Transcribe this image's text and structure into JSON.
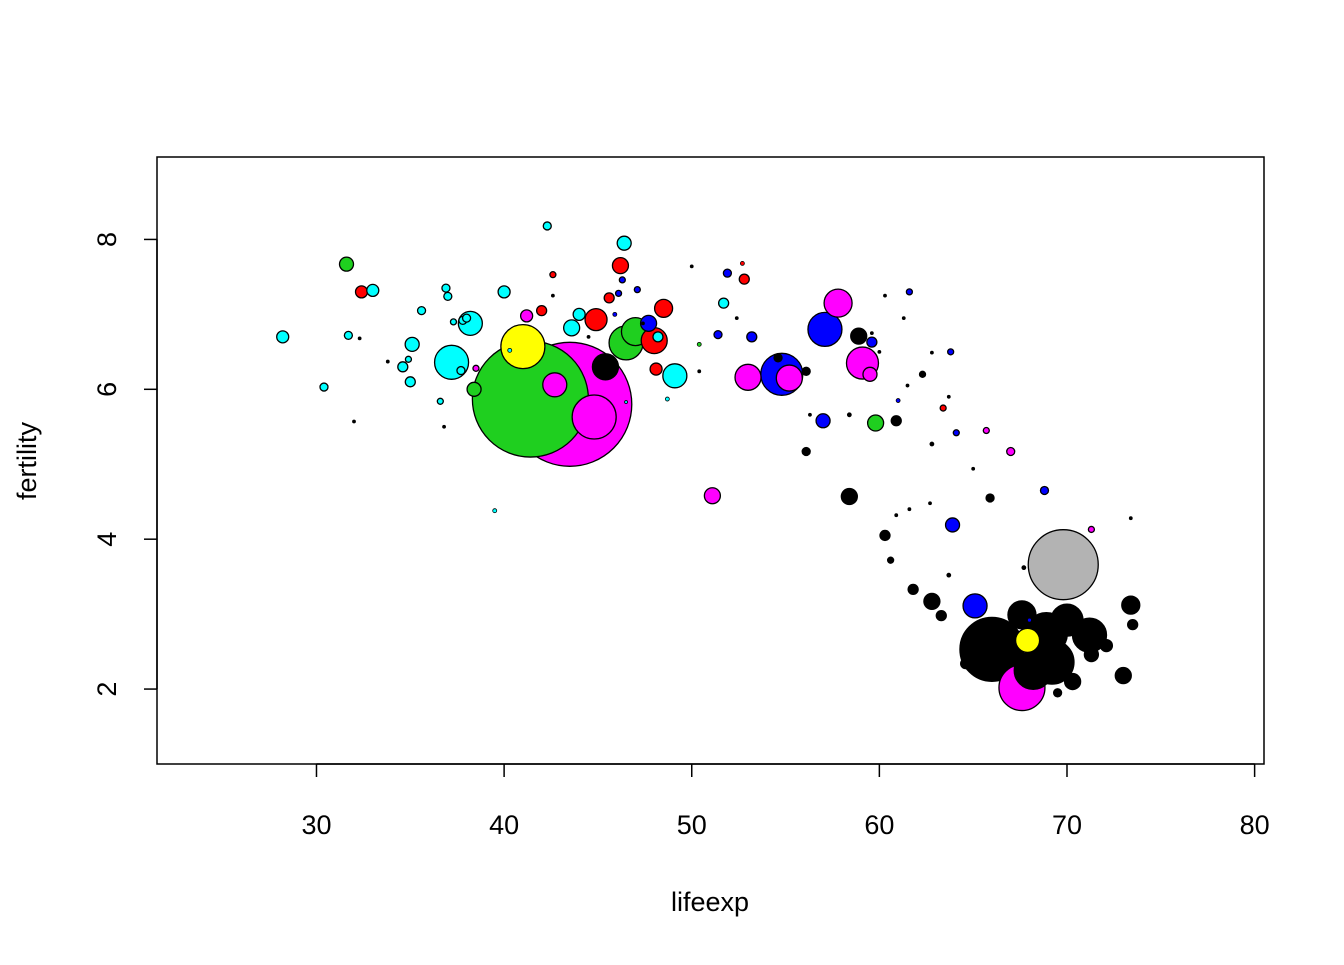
{
  "chart_data": {
    "type": "scatter",
    "xlabel": "lifeexp",
    "ylabel": "fertility",
    "xlim": [
      21.5,
      80.5
    ],
    "ylim": [
      1.0,
      9.1
    ],
    "xticks": [
      30,
      40,
      50,
      60,
      70,
      80
    ],
    "yticks": [
      2,
      4,
      6,
      8
    ],
    "grid": false,
    "legend": "none",
    "marker_size_encoding": "bubble area proportional to a third variable",
    "points": [
      {
        "x": 43.5,
        "y": 5.8,
        "r": 62,
        "color": "#FF00FF"
      },
      {
        "x": 41.4,
        "y": 5.87,
        "r": 58,
        "color": "#1FCF1F"
      },
      {
        "x": 69.8,
        "y": 3.66,
        "r": 35,
        "color": "#B3B3B3"
      },
      {
        "x": 66.0,
        "y": 2.53,
        "r": 32,
        "color": "#000000"
      },
      {
        "x": 44.8,
        "y": 5.63,
        "r": 22,
        "color": "#FF00FF"
      },
      {
        "x": 67.6,
        "y": 2.02,
        "r": 23,
        "color": "#FF00FF"
      },
      {
        "x": 69.2,
        "y": 2.36,
        "r": 22,
        "color": "#000000"
      },
      {
        "x": 68.9,
        "y": 2.74,
        "r": 21,
        "color": "#000000"
      },
      {
        "x": 68.2,
        "y": 2.25,
        "r": 19,
        "color": "#000000"
      },
      {
        "x": 71.2,
        "y": 2.72,
        "r": 17,
        "color": "#000000"
      },
      {
        "x": 70.0,
        "y": 2.92,
        "r": 16,
        "color": "#000000"
      },
      {
        "x": 54.8,
        "y": 6.2,
        "r": 21,
        "color": "#0000FF"
      },
      {
        "x": 41.0,
        "y": 6.57,
        "r": 22,
        "color": "#FFFF00"
      },
      {
        "x": 57.1,
        "y": 6.8,
        "r": 17,
        "color": "#0000FF"
      },
      {
        "x": 37.2,
        "y": 6.36,
        "r": 17,
        "color": "#00FFFF"
      },
      {
        "x": 46.5,
        "y": 6.62,
        "r": 17,
        "color": "#1FCF1F"
      },
      {
        "x": 47.0,
        "y": 6.77,
        "r": 14,
        "color": "#1FCF1F"
      },
      {
        "x": 59.1,
        "y": 6.35,
        "r": 16,
        "color": "#FF00FF"
      },
      {
        "x": 57.8,
        "y": 7.15,
        "r": 14,
        "color": "#FF00FF"
      },
      {
        "x": 67.6,
        "y": 2.99,
        "r": 14,
        "color": "#000000"
      },
      {
        "x": 53.0,
        "y": 6.16,
        "r": 13,
        "color": "#FF00FF"
      },
      {
        "x": 55.2,
        "y": 6.15,
        "r": 13,
        "color": "#FF00FF"
      },
      {
        "x": 38.2,
        "y": 6.88,
        "r": 12,
        "color": "#00FFFF"
      },
      {
        "x": 49.1,
        "y": 6.18,
        "r": 12,
        "color": "#00FFFF"
      },
      {
        "x": 45.4,
        "y": 6.3,
        "r": 13,
        "color": "#000000"
      },
      {
        "x": 48.0,
        "y": 6.65,
        "r": 13,
        "color": "#FF0000"
      },
      {
        "x": 44.9,
        "y": 6.93,
        "r": 11,
        "color": "#FF0000"
      },
      {
        "x": 42.7,
        "y": 6.06,
        "r": 12,
        "color": "#FF00FF"
      },
      {
        "x": 65.1,
        "y": 3.11,
        "r": 12,
        "color": "#0000FF"
      },
      {
        "x": 67.9,
        "y": 2.65,
        "r": 12,
        "color": "#FFFF00"
      },
      {
        "x": 73.4,
        "y": 3.12,
        "r": 9,
        "color": "#000000"
      },
      {
        "x": 48.5,
        "y": 7.08,
        "r": 9,
        "color": "#FF0000"
      },
      {
        "x": 46.2,
        "y": 7.65,
        "r": 8,
        "color": "#FF0000"
      },
      {
        "x": 43.6,
        "y": 6.82,
        "r": 8,
        "color": "#00FFFF"
      },
      {
        "x": 47.7,
        "y": 6.88,
        "r": 8,
        "color": "#0000FF"
      },
      {
        "x": 51.1,
        "y": 4.58,
        "r": 8,
        "color": "#FF00FF"
      },
      {
        "x": 58.4,
        "y": 4.57,
        "r": 8,
        "color": "#000000"
      },
      {
        "x": 59.8,
        "y": 5.55,
        "r": 8,
        "color": "#1FCF1F"
      },
      {
        "x": 58.9,
        "y": 6.71,
        "r": 8,
        "color": "#000000"
      },
      {
        "x": 59.5,
        "y": 6.2,
        "r": 7,
        "color": "#FF00FF"
      },
      {
        "x": 31.6,
        "y": 7.67,
        "r": 7,
        "color": "#1FCF1F"
      },
      {
        "x": 38.4,
        "y": 6.0,
        "r": 7,
        "color": "#1FCF1F"
      },
      {
        "x": 46.4,
        "y": 7.95,
        "r": 7,
        "color": "#00FFFF"
      },
      {
        "x": 48.1,
        "y": 6.27,
        "r": 6,
        "color": "#FF0000"
      },
      {
        "x": 57.0,
        "y": 5.58,
        "r": 7,
        "color": "#0000FF"
      },
      {
        "x": 63.9,
        "y": 4.19,
        "r": 7,
        "color": "#0000FF"
      },
      {
        "x": 62.8,
        "y": 3.17,
        "r": 8,
        "color": "#000000"
      },
      {
        "x": 70.3,
        "y": 2.1,
        "r": 8,
        "color": "#000000"
      },
      {
        "x": 73.0,
        "y": 2.18,
        "r": 8,
        "color": "#000000"
      },
      {
        "x": 71.3,
        "y": 2.46,
        "r": 7,
        "color": "#000000"
      },
      {
        "x": 72.1,
        "y": 2.58,
        "r": 6,
        "color": "#000000"
      },
      {
        "x": 32.4,
        "y": 7.3,
        "r": 6,
        "color": "#FF0000"
      },
      {
        "x": 33.0,
        "y": 7.32,
        "r": 6,
        "color": "#00FFFF"
      },
      {
        "x": 28.2,
        "y": 6.7,
        "r": 6,
        "color": "#00FFFF"
      },
      {
        "x": 35.1,
        "y": 6.6,
        "r": 7,
        "color": "#00FFFF"
      },
      {
        "x": 40.0,
        "y": 7.3,
        "r": 6,
        "color": "#00FFFF"
      },
      {
        "x": 44.0,
        "y": 7.0,
        "r": 6,
        "color": "#00FFFF"
      },
      {
        "x": 41.2,
        "y": 6.98,
        "r": 6,
        "color": "#FF00FF"
      },
      {
        "x": 42.0,
        "y": 7.05,
        "r": 5,
        "color": "#FF0000"
      },
      {
        "x": 45.6,
        "y": 7.22,
        "r": 5,
        "color": "#FF0000"
      },
      {
        "x": 53.2,
        "y": 6.7,
        "r": 5,
        "color": "#0000FF"
      },
      {
        "x": 51.7,
        "y": 7.15,
        "r": 5,
        "color": "#00FFFF"
      },
      {
        "x": 52.8,
        "y": 7.47,
        "r": 5,
        "color": "#FF0000"
      },
      {
        "x": 51.9,
        "y": 7.55,
        "r": 4,
        "color": "#0000FF"
      },
      {
        "x": 42.3,
        "y": 8.18,
        "r": 4,
        "color": "#00FFFF"
      },
      {
        "x": 34.6,
        "y": 6.3,
        "r": 5,
        "color": "#00FFFF"
      },
      {
        "x": 35.0,
        "y": 6.1,
        "r": 5,
        "color": "#00FFFF"
      },
      {
        "x": 36.9,
        "y": 7.35,
        "r": 4,
        "color": "#00FFFF"
      },
      {
        "x": 37.0,
        "y": 7.24,
        "r": 4,
        "color": "#00FFFF"
      },
      {
        "x": 35.6,
        "y": 7.05,
        "r": 4,
        "color": "#00FFFF"
      },
      {
        "x": 37.8,
        "y": 6.92,
        "r": 4,
        "color": "#00FFFF"
      },
      {
        "x": 38.0,
        "y": 6.95,
        "r": 4,
        "color": "#00FFFF"
      },
      {
        "x": 31.7,
        "y": 6.72,
        "r": 4,
        "color": "#00FFFF"
      },
      {
        "x": 30.4,
        "y": 6.03,
        "r": 4,
        "color": "#00FFFF"
      },
      {
        "x": 37.7,
        "y": 6.25,
        "r": 4,
        "color": "#00FFFF"
      },
      {
        "x": 38.5,
        "y": 6.28,
        "r": 3,
        "color": "#FF00FF"
      },
      {
        "x": 36.6,
        "y": 5.84,
        "r": 3,
        "color": "#00FFFF"
      },
      {
        "x": 34.9,
        "y": 6.4,
        "r": 3,
        "color": "#00FFFF"
      },
      {
        "x": 37.3,
        "y": 6.9,
        "r": 3,
        "color": "#00FFFF"
      },
      {
        "x": 48.2,
        "y": 6.7,
        "r": 5,
        "color": "#00FFFF"
      },
      {
        "x": 46.1,
        "y": 7.28,
        "r": 3,
        "color": "#0000FF"
      },
      {
        "x": 47.1,
        "y": 7.33,
        "r": 3,
        "color": "#0000FF"
      },
      {
        "x": 46.3,
        "y": 7.46,
        "r": 3,
        "color": "#0000FF"
      },
      {
        "x": 42.6,
        "y": 7.53,
        "r": 3,
        "color": "#FF0000"
      },
      {
        "x": 51.4,
        "y": 6.73,
        "r": 4,
        "color": "#0000FF"
      },
      {
        "x": 59.6,
        "y": 6.63,
        "r": 5,
        "color": "#0000FF"
      },
      {
        "x": 60.9,
        "y": 5.58,
        "r": 5,
        "color": "#000000"
      },
      {
        "x": 56.1,
        "y": 5.17,
        "r": 4,
        "color": "#000000"
      },
      {
        "x": 56.1,
        "y": 6.24,
        "r": 4,
        "color": "#000000"
      },
      {
        "x": 54.6,
        "y": 6.42,
        "r": 4,
        "color": "#000000"
      },
      {
        "x": 60.3,
        "y": 4.05,
        "r": 5,
        "color": "#000000"
      },
      {
        "x": 61.8,
        "y": 3.33,
        "r": 5,
        "color": "#000000"
      },
      {
        "x": 63.3,
        "y": 2.98,
        "r": 5,
        "color": "#000000"
      },
      {
        "x": 73.5,
        "y": 2.86,
        "r": 5,
        "color": "#000000"
      },
      {
        "x": 64.6,
        "y": 2.34,
        "r": 5,
        "color": "#000000"
      },
      {
        "x": 69.5,
        "y": 1.95,
        "r": 4,
        "color": "#000000"
      },
      {
        "x": 65.9,
        "y": 4.55,
        "r": 4,
        "color": "#000000"
      },
      {
        "x": 62.3,
        "y": 6.2,
        "r": 3,
        "color": "#000000"
      },
      {
        "x": 60.6,
        "y": 3.72,
        "r": 3,
        "color": "#000000"
      },
      {
        "x": 68.8,
        "y": 4.65,
        "r": 4,
        "color": "#0000FF"
      },
      {
        "x": 67.0,
        "y": 5.17,
        "r": 4,
        "color": "#FF00FF"
      },
      {
        "x": 65.7,
        "y": 5.45,
        "r": 3,
        "color": "#FF00FF"
      },
      {
        "x": 64.1,
        "y": 5.42,
        "r": 3,
        "color": "#0000FF"
      },
      {
        "x": 63.4,
        "y": 5.75,
        "r": 3,
        "color": "#FF0000"
      },
      {
        "x": 63.8,
        "y": 6.5,
        "r": 3,
        "color": "#0000FF"
      },
      {
        "x": 71.3,
        "y": 4.13,
        "r": 3,
        "color": "#FF00FF"
      },
      {
        "x": 61.6,
        "y": 7.3,
        "r": 3,
        "color": "#0000FF"
      },
      {
        "x": 62.8,
        "y": 5.27,
        "r": 2,
        "color": "#000000"
      },
      {
        "x": 61.0,
        "y": 5.85,
        "r": 2,
        "color": "#0000FF"
      },
      {
        "x": 63.7,
        "y": 3.52,
        "r": 2,
        "color": "#000000"
      },
      {
        "x": 67.7,
        "y": 3.62,
        "r": 2,
        "color": "#000000"
      },
      {
        "x": 60.9,
        "y": 4.32,
        "r": 1.5,
        "color": "#000000"
      },
      {
        "x": 65.0,
        "y": 4.94,
        "r": 1.5,
        "color": "#000000"
      },
      {
        "x": 62.7,
        "y": 4.48,
        "r": 1.5,
        "color": "#000000"
      },
      {
        "x": 68.0,
        "y": 2.92,
        "r": 2,
        "color": "#0000FF"
      },
      {
        "x": 73.4,
        "y": 4.28,
        "r": 1.5,
        "color": "#000000"
      },
      {
        "x": 58.4,
        "y": 5.66,
        "r": 2,
        "color": "#000000"
      },
      {
        "x": 45.9,
        "y": 7.0,
        "r": 2,
        "color": "#0000FF"
      },
      {
        "x": 40.3,
        "y": 6.52,
        "r": 2,
        "color": "#00FFFF"
      },
      {
        "x": 39.5,
        "y": 4.38,
        "r": 2,
        "color": "#00FFFF"
      },
      {
        "x": 32.0,
        "y": 5.57,
        "r": 1.5,
        "color": "#000000"
      },
      {
        "x": 36.8,
        "y": 5.5,
        "r": 1.5,
        "color": "#000000"
      },
      {
        "x": 33.8,
        "y": 6.37,
        "r": 1.5,
        "color": "#000000"
      },
      {
        "x": 32.3,
        "y": 6.68,
        "r": 1.5,
        "color": "#000000"
      },
      {
        "x": 48.7,
        "y": 5.87,
        "r": 2,
        "color": "#00FFFF"
      },
      {
        "x": 46.5,
        "y": 5.83,
        "r": 1.5,
        "color": "#00FFFF"
      },
      {
        "x": 50.4,
        "y": 6.6,
        "r": 2,
        "color": "#1FCF1F"
      },
      {
        "x": 52.7,
        "y": 7.68,
        "r": 2,
        "color": "#FF0000"
      },
      {
        "x": 50.0,
        "y": 7.64,
        "r": 1.5,
        "color": "#000000"
      },
      {
        "x": 42.6,
        "y": 7.25,
        "r": 1.5,
        "color": "#000000"
      },
      {
        "x": 44.5,
        "y": 6.7,
        "r": 1.5,
        "color": "#000000"
      },
      {
        "x": 47.4,
        "y": 6.88,
        "r": 1.5,
        "color": "#000000"
      },
      {
        "x": 52.4,
        "y": 6.95,
        "r": 1.5,
        "color": "#000000"
      },
      {
        "x": 62.8,
        "y": 6.49,
        "r": 1.5,
        "color": "#000000"
      },
      {
        "x": 60.0,
        "y": 6.5,
        "r": 1.5,
        "color": "#000000"
      },
      {
        "x": 60.3,
        "y": 7.25,
        "r": 1.5,
        "color": "#000000"
      },
      {
        "x": 61.3,
        "y": 6.95,
        "r": 1.5,
        "color": "#000000"
      },
      {
        "x": 59.6,
        "y": 6.75,
        "r": 1.5,
        "color": "#000000"
      },
      {
        "x": 61.5,
        "y": 6.05,
        "r": 1.5,
        "color": "#000000"
      },
      {
        "x": 56.3,
        "y": 5.66,
        "r": 1.5,
        "color": "#000000"
      },
      {
        "x": 50.4,
        "y": 6.24,
        "r": 1.5,
        "color": "#000000"
      },
      {
        "x": 61.6,
        "y": 4.4,
        "r": 1.5,
        "color": "#000000"
      },
      {
        "x": 63.7,
        "y": 5.9,
        "r": 1.5,
        "color": "#000000"
      }
    ]
  }
}
